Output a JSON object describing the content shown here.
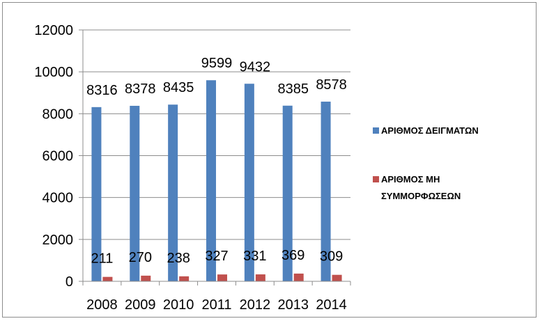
{
  "chart_data": {
    "type": "bar",
    "categories": [
      "2008",
      "2009",
      "2010",
      "2011",
      "2012",
      "2013",
      "2014"
    ],
    "series": [
      {
        "name": "ΑΡΙΘΜΟΣ ΔΕΙΓΜΑΤΩΝ",
        "values": [
          8316,
          8378,
          8435,
          9599,
          9432,
          8385,
          8578
        ],
        "color": "#4f81bd"
      },
      {
        "name": "ΑΡΙΘΜΟΣ ΜΗ ΣΥΜΜΟΡΦΩΣΕΩΝ",
        "values": [
          211,
          270,
          238,
          327,
          331,
          369,
          309
        ],
        "color": "#c0504d"
      }
    ],
    "yticks": [
      0,
      2000,
      4000,
      6000,
      8000,
      10000,
      12000
    ],
    "ylim": [
      0,
      12000
    ],
    "grid": true,
    "legend": "right",
    "title": "",
    "xlabel": "",
    "ylabel": ""
  }
}
